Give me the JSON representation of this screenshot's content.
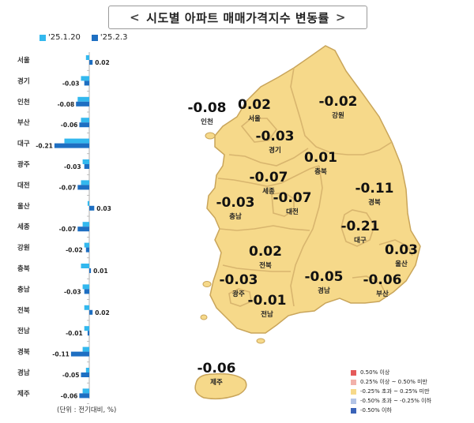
{
  "title": "시도별 아파트 매매가격지수 변동률",
  "title_left_mark": "<",
  "title_right_mark": ">",
  "unit_note": "(단위 : 전기대비, %)",
  "colors": {
    "series1": "#33b8ee",
    "series2": "#1e6fc2",
    "map_fill": "#f6d98a",
    "map_stroke": "#c9a55a"
  },
  "chart_data": {
    "type": "bar",
    "orientation": "horizontal",
    "categories": [
      "서울",
      "경기",
      "인천",
      "부산",
      "대구",
      "광주",
      "대전",
      "울산",
      "세종",
      "강원",
      "충북",
      "충남",
      "전북",
      "전남",
      "경북",
      "경남",
      "제주"
    ],
    "series": [
      {
        "name": "'25.1.20",
        "values": [
          -0.02,
          -0.05,
          -0.07,
          -0.05,
          -0.15,
          -0.04,
          -0.05,
          -0.01,
          -0.04,
          -0.03,
          -0.05,
          -0.04,
          -0.03,
          -0.03,
          -0.04,
          -0.02,
          -0.04
        ]
      },
      {
        "name": "'25.2.3",
        "values": [
          0.02,
          -0.03,
          -0.08,
          -0.06,
          -0.21,
          -0.03,
          -0.07,
          0.03,
          -0.07,
          -0.02,
          0.01,
          -0.03,
          0.02,
          -0.01,
          -0.11,
          -0.05,
          -0.06
        ]
      }
    ],
    "value_labels": [
      "0.02",
      "-0.03",
      "-0.08",
      "-0.06",
      "-0.21",
      "-0.03",
      "-0.07",
      "0.03",
      "-0.07",
      "-0.02",
      "0.01",
      "-0.03",
      "0.02",
      "-0.01",
      "-0.11",
      "-0.05",
      "-0.06"
    ]
  },
  "map_labels": [
    {
      "region": "인천",
      "value": "-0.08"
    },
    {
      "region": "서울",
      "value": "0.02"
    },
    {
      "region": "강원",
      "value": "-0.02"
    },
    {
      "region": "경기",
      "value": "-0.03"
    },
    {
      "region": "충북",
      "value": "0.01"
    },
    {
      "region": "세종",
      "value": "-0.07"
    },
    {
      "region": "대전",
      "value": "-0.07"
    },
    {
      "region": "충남",
      "value": "-0.03"
    },
    {
      "region": "경북",
      "value": "-0.11"
    },
    {
      "region": "대구",
      "value": "-0.21"
    },
    {
      "region": "울산",
      "value": "0.03"
    },
    {
      "region": "전북",
      "value": "0.02"
    },
    {
      "region": "광주",
      "value": "-0.03"
    },
    {
      "region": "전남",
      "value": "-0.01"
    },
    {
      "region": "경남",
      "value": "-0.05"
    },
    {
      "region": "부산",
      "value": "-0.06"
    },
    {
      "region": "제주",
      "value": "-0.06"
    }
  ],
  "map_legend": [
    {
      "label": "0.50% 이상",
      "color": "#e55a5a"
    },
    {
      "label": "0.25% 이상 ~ 0.50% 미만",
      "color": "#f2b1aa"
    },
    {
      "label": "-0.25% 초과 ~ 0.25% 미만",
      "color": "#f6d98a"
    },
    {
      "label": "-0.50% 초과 ~ -0.25% 이하",
      "color": "#b3c4e6"
    },
    {
      "label": "-0.50% 이하",
      "color": "#3a63b8"
    }
  ]
}
